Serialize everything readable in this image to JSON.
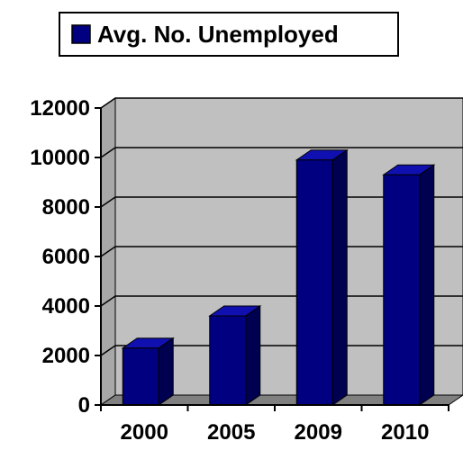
{
  "chart_data": {
    "type": "bar",
    "categories": [
      "2000",
      "2005",
      "2009",
      "2010"
    ],
    "series": [
      {
        "name": "Avg. No. Unemployed",
        "values": [
          2300,
          3600,
          9900,
          9300
        ]
      }
    ],
    "ylim": [
      0,
      12000
    ],
    "yticks": [
      "0",
      "2000",
      "4000",
      "6000",
      "8000",
      "10000",
      "12000"
    ],
    "grid": true,
    "legend_position": "top",
    "three_d": true,
    "colors": {
      "bar_front": "#000080",
      "bar_top": "#1010b0",
      "bar_side": "#000050",
      "wall": "#c0c0c0",
      "floor": "#808080",
      "grid": "#000000"
    }
  }
}
